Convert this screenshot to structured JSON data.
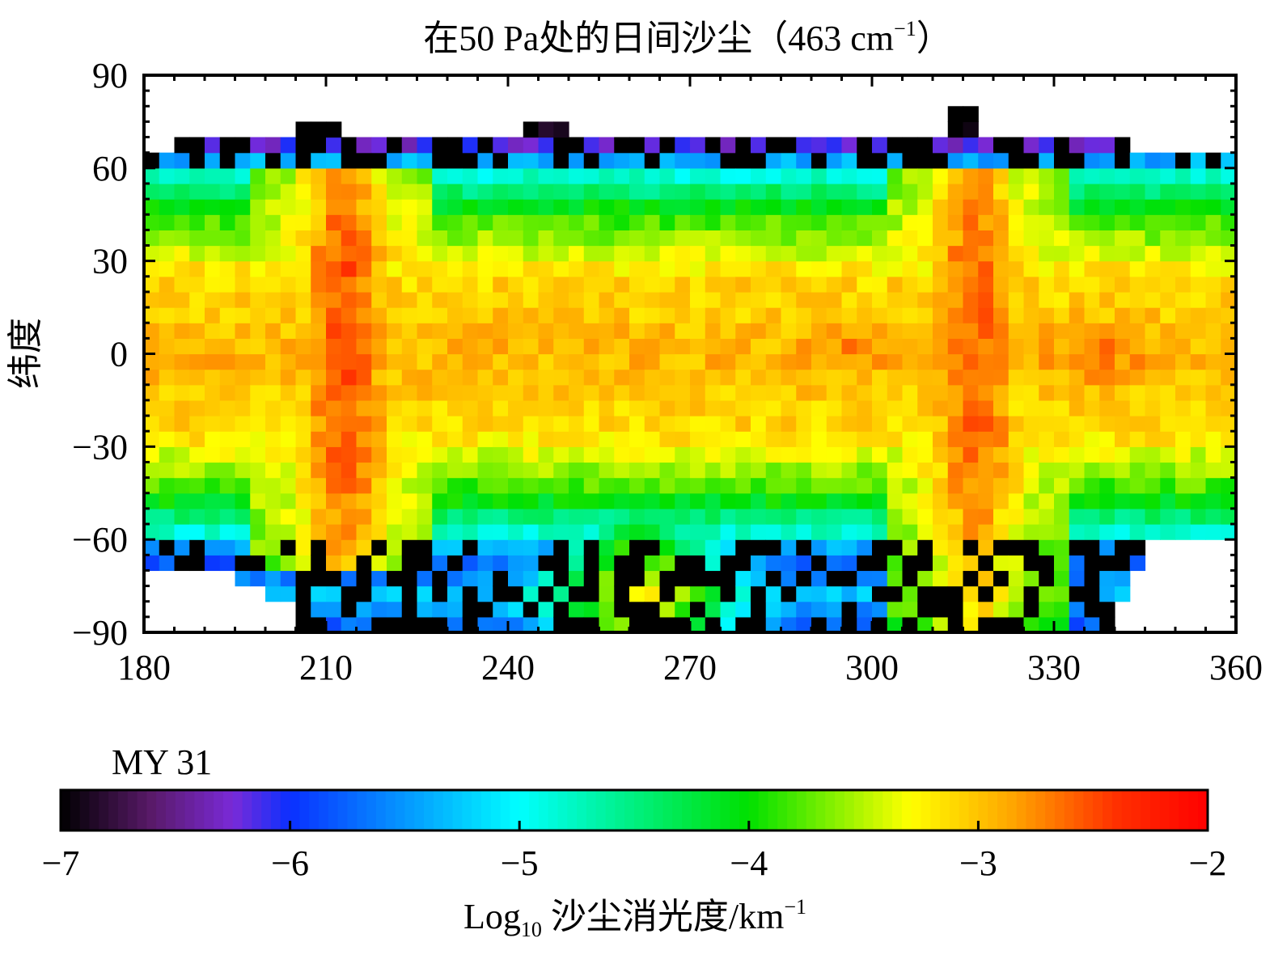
{
  "chart_data": {
    "type": "heatmap",
    "title": "在50 Pa处的日间沙尘（463 cm⁻¹）",
    "title_parts": {
      "main": "在50 Pa处的日间沙尘（463 cm",
      "sup": "−1",
      "end": "）"
    },
    "ylabel": "纬度",
    "xlabel": "",
    "xlim": [
      180,
      360
    ],
    "ylim": [
      -90,
      90
    ],
    "x_ticks": [
      "180",
      "210",
      "240",
      "270",
      "300",
      "330",
      "360"
    ],
    "y_ticks": [
      "90",
      "60",
      "30",
      "0",
      "−30",
      "−60",
      "−90"
    ],
    "x_tick_values": [
      180,
      210,
      240,
      270,
      300,
      330,
      360
    ],
    "y_tick_values": [
      90,
      60,
      30,
      0,
      -30,
      -60,
      -90
    ],
    "grid": false,
    "season_label": "MY 31",
    "colorbar": {
      "range": [
        -7,
        -2
      ],
      "tick_labels": [
        "−7",
        "−6",
        "−5",
        "−4",
        "−3",
        "−2"
      ],
      "tick_values": [
        -7,
        -6,
        -5,
        -4,
        -3,
        -2
      ],
      "label": {
        "main": "Log",
        "sub": "10",
        "mid": " 沙尘消光度/km",
        "sup": "−1"
      },
      "colormap": "rainbow (black-purple-blue-cyan-green-yellow-orange-red)"
    },
    "grid_resolution": {
      "dx_ls_deg": 2.5,
      "dy_lat_deg": 5
    },
    "regions": [
      {
        "description": "equatorial band",
        "lat_range": [
          -30,
          30
        ],
        "log10_extinction": -3.1
      },
      {
        "description": "storm 1 peak",
        "ls_range": [
          208,
          218
        ],
        "lat_range": [
          -65,
          55
        ],
        "log10_extinction": -2.7
      },
      {
        "description": "storm 2 peak",
        "ls_range": [
          312,
          322
        ],
        "lat_range": [
          -70,
          55
        ],
        "log10_extinction": -2.85
      },
      {
        "description": "high latitudes",
        "lat_range": [
          50,
          65
        ],
        "log10_extinction": -5.0
      },
      {
        "description": "polar edge",
        "lat_range": [
          65,
          75
        ],
        "log10_extinction": -6.5
      }
    ]
  },
  "colors": {
    "colormap_stops": [
      "#000000",
      "#5a1a6a",
      "#7a2ad8",
      "#0a30ff",
      "#00ffff",
      "#00e000",
      "#ffff00",
      "#ffa500",
      "#ff3000",
      "#ff0000"
    ]
  }
}
